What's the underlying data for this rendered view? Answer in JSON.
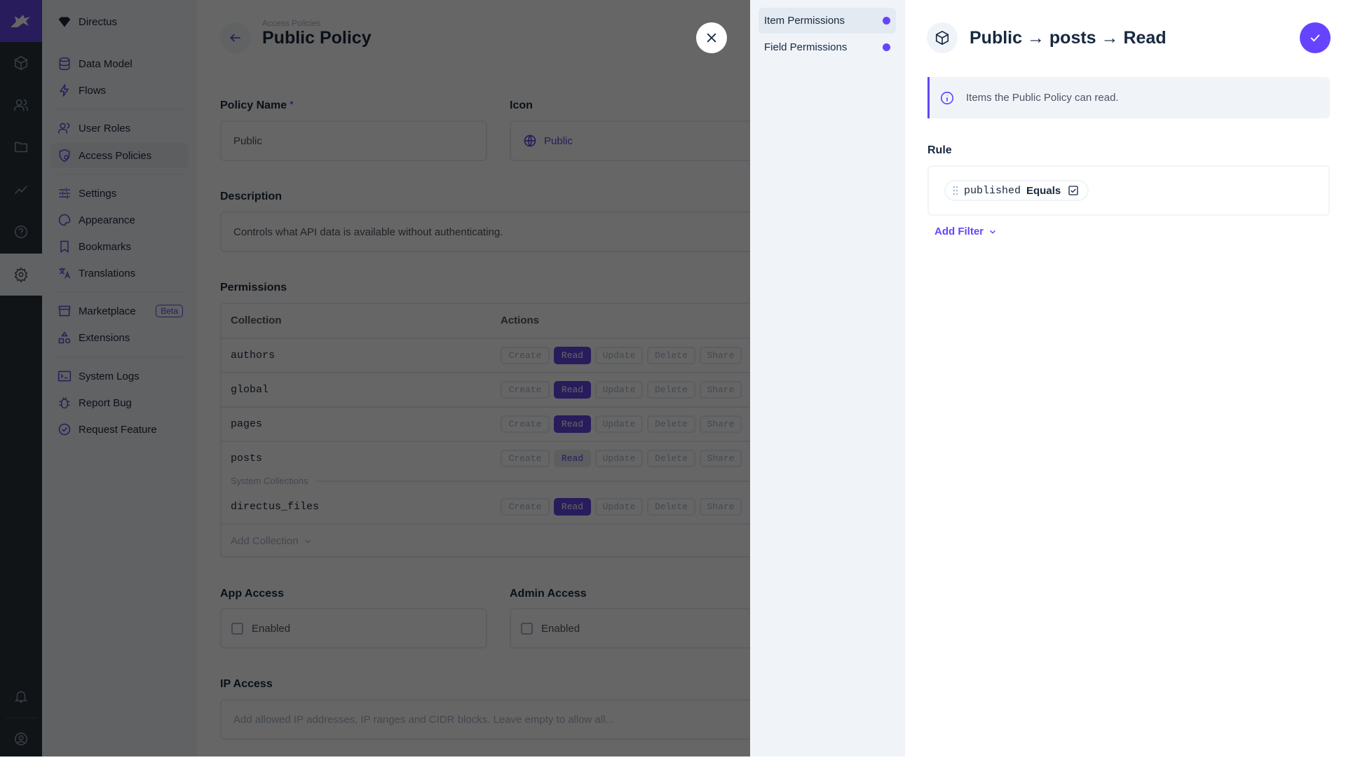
{
  "rail": {
    "icons": [
      "directus-logo",
      "content-icon",
      "users-icon",
      "files-icon",
      "insights-icon",
      "help-icon",
      "settings-icon",
      "notifications-icon",
      "user-profile-icon"
    ],
    "active": "settings-icon",
    "logo_color": "#6644ff"
  },
  "nav": {
    "project": "Directus",
    "items": [
      {
        "label": "Data Model",
        "icon": "database-icon"
      },
      {
        "label": "Flows",
        "icon": "bolt-icon"
      },
      {
        "label": "User Roles",
        "icon": "group-icon"
      },
      {
        "label": "Access Policies",
        "icon": "policy-icon",
        "active": true
      },
      {
        "label": "Settings",
        "icon": "tune-icon"
      },
      {
        "label": "Appearance",
        "icon": "palette-icon"
      },
      {
        "label": "Bookmarks",
        "icon": "bookmark-icon"
      },
      {
        "label": "Translations",
        "icon": "translate-icon"
      },
      {
        "label": "Marketplace",
        "icon": "storefront-icon",
        "badge": "Beta"
      },
      {
        "label": "Extensions",
        "icon": "extension-icon"
      },
      {
        "label": "System Logs",
        "icon": "terminal-icon"
      },
      {
        "label": "Report Bug",
        "icon": "bug-icon"
      },
      {
        "label": "Request Feature",
        "icon": "verified-icon"
      }
    ]
  },
  "header": {
    "breadcrumb": "Access Policies",
    "title": "Public Policy"
  },
  "form": {
    "policy_name": {
      "label": "Policy Name",
      "required": "*",
      "value": "Public"
    },
    "icon": {
      "label": "Icon",
      "value": "Public",
      "icon": "public-icon"
    },
    "description": {
      "label": "Description",
      "value": "Controls what API data is available without authenticating."
    },
    "permissions": {
      "label": "Permissions",
      "col_collection": "Collection",
      "col_actions": "Actions",
      "action_labels": [
        "Create",
        "Read",
        "Update",
        "Delete",
        "Share"
      ],
      "rows": [
        {
          "name": "authors",
          "states": [
            "none",
            "full",
            "none",
            "none",
            "none"
          ]
        },
        {
          "name": "global",
          "states": [
            "none",
            "full",
            "none",
            "none",
            "none"
          ]
        },
        {
          "name": "pages",
          "states": [
            "none",
            "full",
            "none",
            "none",
            "none"
          ]
        },
        {
          "name": "posts",
          "states": [
            "none",
            "partial",
            "none",
            "none",
            "none"
          ]
        }
      ],
      "system_label": "System Collections",
      "system_rows": [
        {
          "name": "directus_files",
          "states": [
            "none",
            "full",
            "none",
            "none",
            "none"
          ]
        }
      ],
      "add_collection": "Add Collection"
    },
    "app_access": {
      "label": "App Access",
      "checkbox": "Enabled",
      "checked": false
    },
    "admin_access": {
      "label": "Admin Access",
      "checkbox": "Enabled",
      "checked": false
    },
    "ip_access": {
      "label": "IP Access",
      "placeholder": "Add allowed IP addresses, IP ranges and CIDR blocks. Leave empty to allow all..."
    }
  },
  "drawer": {
    "nav": [
      {
        "label": "Item Permissions",
        "active": true
      },
      {
        "label": "Field Permissions",
        "active": false
      }
    ],
    "title": "Public → posts → Read",
    "notice": "Items the Public Policy can read.",
    "rule_label": "Rule",
    "filter": {
      "field": "published",
      "operator": "Equals",
      "value_checked": true
    },
    "add_filter": "Add Filter",
    "accent": "#6644ff"
  }
}
